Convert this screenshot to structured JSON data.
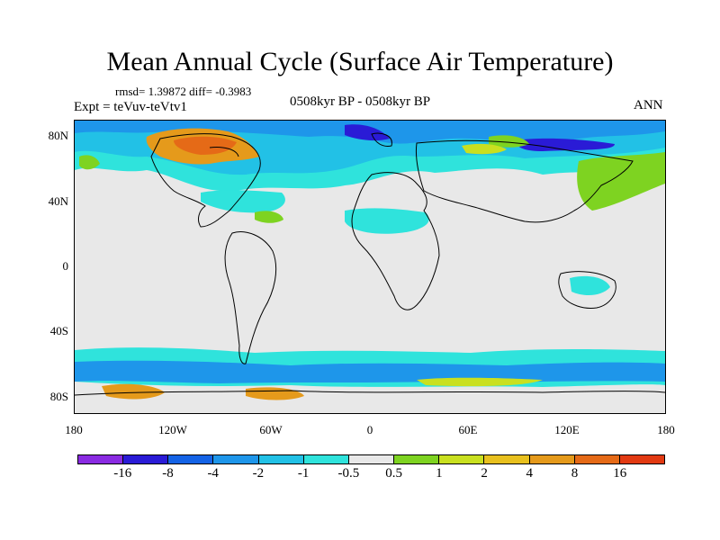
{
  "title": "Mean Annual Cycle (Surface Air Temperature)",
  "stats_text": "rmsd= 1.39872 diff= -0.3983",
  "experiment_text": "Expt = teVuv-teVtv1",
  "period_text": "0508kyr BP - 0508kyr BP",
  "season_text": "ANN",
  "map": {
    "variable": "Surface Air Temperature difference",
    "lat_ticks": [
      "80N",
      "40N",
      "0",
      "40S",
      "80S"
    ],
    "lon_ticks": [
      "180",
      "120W",
      "60W",
      "0",
      "60E",
      "120E",
      "180"
    ]
  },
  "colorbar": {
    "colors": [
      "#8a2be2",
      "#2a1bd6",
      "#1463e6",
      "#1e96ea",
      "#22c1e6",
      "#2fe3dc",
      "#e8e8e8",
      "#7ed321",
      "#c9e020",
      "#e8c01e",
      "#e59a1b",
      "#e56a17",
      "#e23a12"
    ],
    "labels": [
      "-16",
      "-8",
      "-4",
      "-2",
      "-1",
      "-0.5",
      "0.5",
      "1",
      "2",
      "4",
      "8",
      "16"
    ]
  }
}
